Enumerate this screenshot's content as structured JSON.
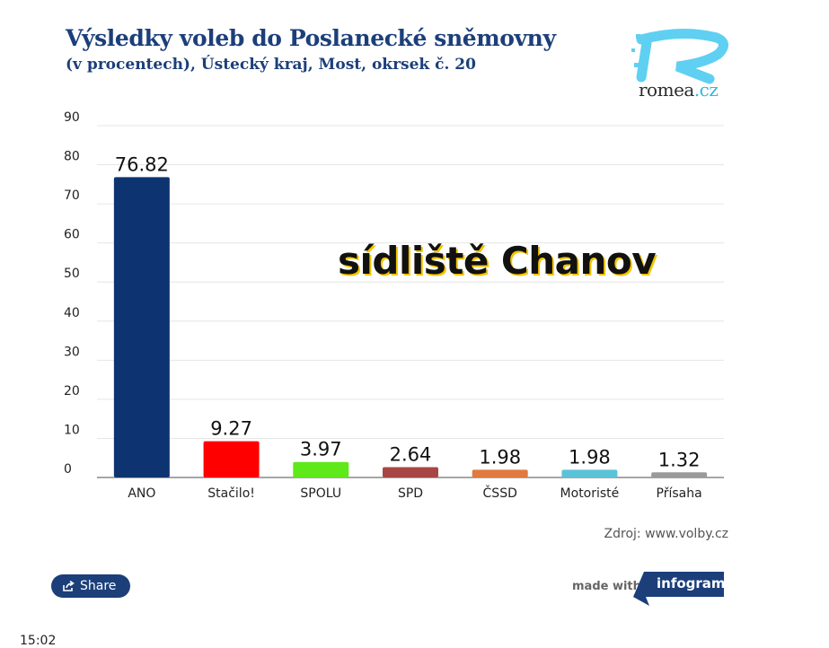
{
  "header": {
    "title": "Výsledky voleb do Poslanecké sněmovny",
    "subtitle": "(v procentech), Ústecký kraj, Most, okrsek č. 20"
  },
  "logo": {
    "name": "romea",
    "tld": ".cz",
    "icon": "romea-r-logo-icon"
  },
  "overlay": {
    "label": "sídliště Chanov"
  },
  "source": "Zdroj: www.volby.cz",
  "share": {
    "label": "Share",
    "icon": "share-icon"
  },
  "footer": {
    "made_with": "made with",
    "brand": "infogram"
  },
  "clock": "15:02",
  "chart_data": {
    "type": "bar",
    "title": "Výsledky voleb do Poslanecké sněmovny",
    "xlabel": "",
    "ylabel": "",
    "ylim": [
      0,
      90
    ],
    "yticks": [
      0,
      10,
      20,
      30,
      40,
      50,
      60,
      70,
      80,
      90
    ],
    "grid": true,
    "categories": [
      "ANO",
      "Stačilo!",
      "SPOLU",
      "SPD",
      "ČSSD",
      "Motoristé",
      "Přísaha"
    ],
    "values": [
      76.82,
      9.27,
      3.97,
      2.64,
      1.98,
      1.98,
      1.32
    ],
    "value_labels": [
      "76.82",
      "9.27",
      "3.97",
      "2.64",
      "1.98",
      "1.98",
      "1.32"
    ],
    "colors": [
      "#0d3470",
      "#ff0000",
      "#5fe81a",
      "#a84545",
      "#e07a3e",
      "#5bc3d8",
      "#9a9a9a"
    ]
  }
}
